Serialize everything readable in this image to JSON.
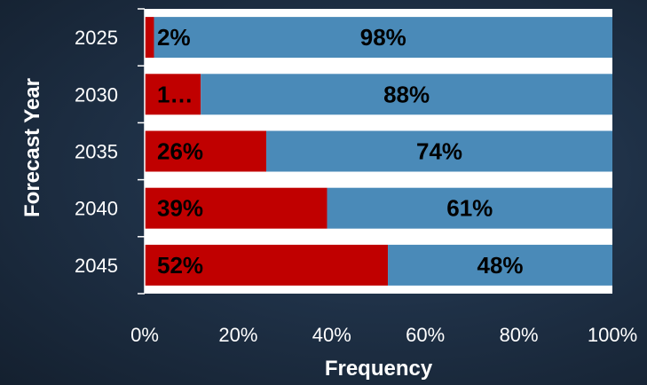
{
  "chart_data": {
    "type": "bar",
    "orientation": "horizontal",
    "stacked": true,
    "percent_stacked": true,
    "categories": [
      "2025",
      "2030",
      "2035",
      "2040",
      "2045"
    ],
    "series": [
      {
        "values": [
          2,
          12,
          26,
          39,
          52
        ],
        "labels": [
          "2%",
          "1…",
          "26%",
          "39%",
          "52%"
        ],
        "color": "#c00000"
      },
      {
        "values": [
          98,
          88,
          74,
          61,
          48
        ],
        "labels": [
          "98%",
          "88%",
          "74%",
          "61%",
          "48%"
        ],
        "color": "#4a8ab8"
      }
    ],
    "title": "",
    "xlabel": "Frequency",
    "ylabel": "Forecast Year",
    "xlim": [
      0,
      100
    ],
    "x_ticks": [
      "0%",
      "20%",
      "40%",
      "60%",
      "80%",
      "100%"
    ],
    "plot_background": "#ffffff",
    "grid": false,
    "legend": "none"
  }
}
